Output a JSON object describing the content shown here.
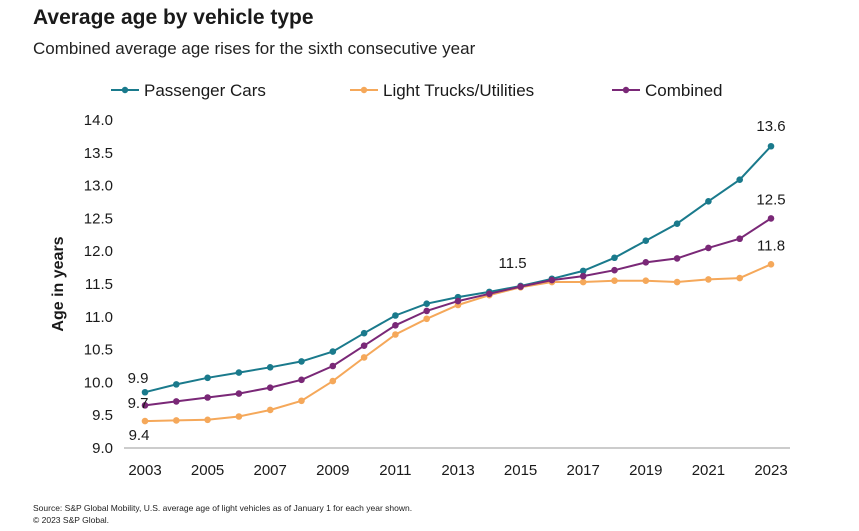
{
  "title": "Average age by vehicle type",
  "subtitle": "Combined average age rises for the sixth consecutive year",
  "footer": {
    "source": "Source: S&P Global Mobility, U.S. average age of light vehicles as of January 1 for each year shown.",
    "copyright": "© 2023 S&P Global."
  },
  "chart_data": {
    "type": "line",
    "title": "Average age by vehicle type",
    "subtitle": "Combined average age rises for the sixth consecutive year",
    "xlabel": "",
    "ylabel": "Age in years",
    "x": [
      2003,
      2004,
      2005,
      2006,
      2007,
      2008,
      2009,
      2010,
      2011,
      2012,
      2013,
      2014,
      2015,
      2016,
      2017,
      2018,
      2019,
      2020,
      2021,
      2022,
      2023
    ],
    "x_tick_labels": [
      "2003",
      "2005",
      "2007",
      "2009",
      "2011",
      "2013",
      "2015",
      "2017",
      "2019",
      "2021",
      "2023"
    ],
    "y_tick_labels": [
      "9.0",
      "9.5",
      "10.0",
      "10.5",
      "11.0",
      "11.5",
      "12.0",
      "12.5",
      "13.0",
      "13.5",
      "14.0"
    ],
    "ylim": [
      9.0,
      14.0
    ],
    "grid": false,
    "legend_position": "top",
    "series": [
      {
        "name": "Passenger Cars",
        "color": "#1a7a8c",
        "values": [
          9.85,
          9.97,
          10.07,
          10.15,
          10.23,
          10.32,
          10.47,
          10.75,
          11.02,
          11.2,
          11.3,
          11.38,
          11.47,
          11.58,
          11.7,
          11.9,
          12.16,
          12.42,
          12.76,
          13.09,
          13.6
        ]
      },
      {
        "name": "Light Trucks/Utilities",
        "color": "#f5a85a",
        "values": [
          9.41,
          9.42,
          9.43,
          9.48,
          9.58,
          9.72,
          10.02,
          10.38,
          10.73,
          10.97,
          11.18,
          11.33,
          11.45,
          11.53,
          11.53,
          11.55,
          11.55,
          11.53,
          11.57,
          11.59,
          11.8
        ]
      },
      {
        "name": "Combined",
        "color": "#7a2877",
        "values": [
          9.65,
          9.71,
          9.77,
          9.83,
          9.92,
          10.04,
          10.25,
          10.56,
          10.87,
          11.09,
          11.24,
          11.35,
          11.46,
          11.56,
          11.62,
          11.71,
          11.83,
          11.89,
          12.05,
          12.19,
          12.5
        ]
      }
    ],
    "annotations": [
      {
        "text": "9.9",
        "x": 2003,
        "y": 9.9,
        "series": "Passenger Cars"
      },
      {
        "text": "9.7",
        "x": 2003,
        "y": 9.7,
        "series": "Combined"
      },
      {
        "text": "9.4",
        "x": 2003,
        "y": 9.4,
        "series": "Light Trucks/Utilities"
      },
      {
        "text": "11.5",
        "x": 2015,
        "y": 11.5,
        "series": "Combined"
      },
      {
        "text": "13.6",
        "x": 2023,
        "y": 13.6,
        "series": "Passenger Cars"
      },
      {
        "text": "12.5",
        "x": 2023,
        "y": 12.5,
        "series": "Combined"
      },
      {
        "text": "11.8",
        "x": 2023,
        "y": 11.8,
        "series": "Light Trucks/Utilities"
      }
    ]
  }
}
